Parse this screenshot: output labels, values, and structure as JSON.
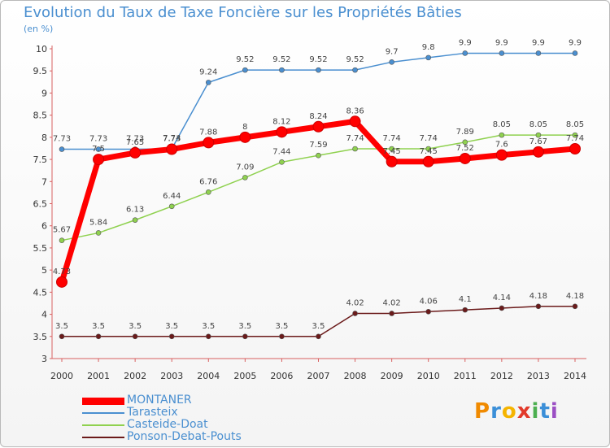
{
  "chart_data": {
    "type": "line",
    "title": "Evolution du Taux de Taxe Foncière sur les Propriétés Bâties",
    "unit_label": "(en %)",
    "x": [
      "2000",
      "2001",
      "2002",
      "2003",
      "2004",
      "2005",
      "2006",
      "2007",
      "2008",
      "2009",
      "2010",
      "2011",
      "2012",
      "2013",
      "2014"
    ],
    "ylim": [
      3,
      10
    ],
    "yticks": [
      "3",
      "3.5",
      "4",
      "4.5",
      "5",
      "5.5",
      "6",
      "6.5",
      "7",
      "7.5",
      "8",
      "8.5",
      "9",
      "9.5",
      "10"
    ],
    "series": [
      {
        "name": "Ponson-Debat-Pouts",
        "color": "#6b1a1a",
        "values": [
          3.5,
          3.5,
          3.5,
          3.5,
          3.5,
          3.5,
          3.5,
          3.5,
          4.02,
          4.02,
          4.06,
          4.1,
          4.14,
          4.18,
          4.18
        ],
        "labels": [
          "3.5",
          "3.5",
          "3.5",
          "3.5",
          "3.5",
          "3.5",
          "3.5",
          "3.5",
          "4.02",
          "4.02",
          "4.06",
          "4.1",
          "4.14",
          "4.18",
          "4.18"
        ]
      },
      {
        "name": "Casteide-Doat",
        "color": "#8fd14f",
        "values": [
          5.67,
          5.84,
          6.13,
          6.44,
          6.76,
          7.09,
          7.44,
          7.59,
          7.74,
          7.74,
          7.74,
          7.89,
          8.05,
          8.05,
          8.05
        ],
        "labels": [
          "5.67",
          "5.84",
          "6.13",
          "6.44",
          "6.76",
          "7.09",
          "7.44",
          "7.59",
          "7.74",
          "7.74",
          "7.74",
          "7.89",
          "8.05",
          "8.05",
          "8.05"
        ]
      },
      {
        "name": "Tarasteix",
        "color": "#4a8fd0",
        "values": [
          7.73,
          7.73,
          7.73,
          7.74,
          9.24,
          9.52,
          9.52,
          9.52,
          9.52,
          9.7,
          9.8,
          9.9,
          9.9,
          9.9,
          9.9
        ],
        "labels": [
          "7.73",
          "7.73",
          "7.73",
          "7.74",
          "9.24",
          "9.52",
          "9.52",
          "9.52",
          "9.52",
          "9.7",
          "9.8",
          "9.9",
          "9.9",
          "9.9",
          "9.9"
        ]
      },
      {
        "name": "MONTANER",
        "color": "#ff0000",
        "values": [
          4.73,
          7.5,
          7.65,
          7.73,
          7.88,
          8,
          8.12,
          8.24,
          8.36,
          7.45,
          7.45,
          7.52,
          7.6,
          7.67,
          7.74
        ],
        "labels": [
          "4.73",
          "7.5",
          "7.65",
          "7.73",
          "7.88",
          "8",
          "8.12",
          "8.24",
          "8.36",
          "7.45",
          "7.45",
          "7.52",
          "7.6",
          "7.67",
          "7.74"
        ]
      }
    ],
    "legend": [
      "MONTANER",
      "Tarasteix",
      "Casteide-Doat",
      "Ponson-Debat-Pouts"
    ],
    "legend_position": "bottom-left",
    "grid": false
  },
  "logo": {
    "text": "Proxiti",
    "colors": [
      "#f08a00",
      "#3b8fd8",
      "#f5b400",
      "#e23a2b",
      "#4caf50",
      "#3b8fd8",
      "#9b4fc4"
    ]
  }
}
